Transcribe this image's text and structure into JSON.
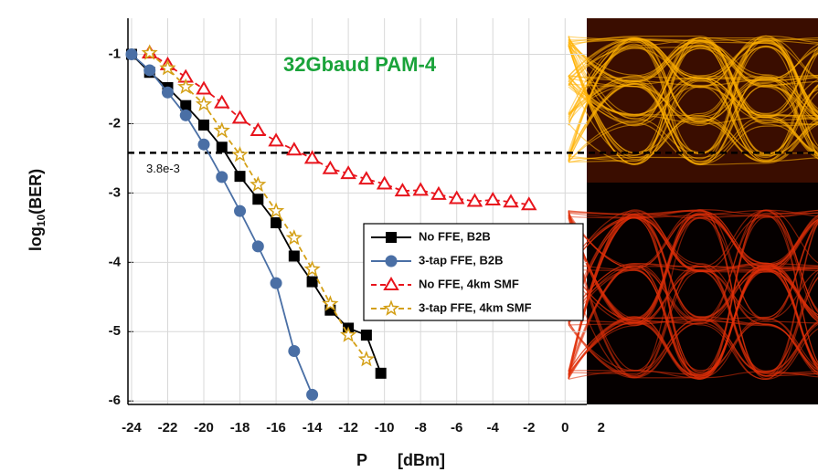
{
  "chart_data": {
    "type": "line",
    "title": "32Gbaud PAM-4",
    "xlabel": [
      "P",
      "[dBm]"
    ],
    "ylabel": [
      "log",
      "10",
      "(BER)"
    ],
    "xlim": [
      -24.2,
      1.2
    ],
    "ylim": [
      -6.05,
      -0.48
    ],
    "xticks": [
      -24,
      -22,
      -20,
      -18,
      -16,
      -14,
      -12,
      -10,
      -8,
      -6,
      -4,
      -2,
      0,
      2
    ],
    "yticks": [
      -6,
      -5,
      -4,
      -3,
      -2,
      -1
    ],
    "grid": true,
    "threshold": {
      "value": -2.42,
      "label": "3.8e-3"
    },
    "series": [
      {
        "name": "No FFE, B2B",
        "color": "#000000",
        "marker": "square",
        "dash": false,
        "x": [
          -24,
          -23,
          -22,
          -21,
          -20,
          -19,
          -18,
          -17,
          -16,
          -15,
          -14,
          -13,
          -12,
          -11,
          -10.2
        ],
        "values": [
          -1.0,
          -1.26,
          -1.48,
          -1.74,
          -2.02,
          -2.34,
          -2.76,
          -3.09,
          -3.43,
          -3.91,
          -4.28,
          -4.69,
          -4.95,
          -5.05,
          -5.6
        ]
      },
      {
        "name": "3-tap FFE, B2B",
        "color": "#4a6fa5",
        "marker": "circle",
        "dash": false,
        "x": [
          -24,
          -23,
          -22,
          -21,
          -20,
          -19,
          -18,
          -17,
          -16,
          -15,
          -14
        ],
        "values": [
          -1.0,
          -1.23,
          -1.55,
          -1.88,
          -2.3,
          -2.77,
          -3.26,
          -3.77,
          -4.3,
          -5.28,
          -5.91
        ]
      },
      {
        "name": "No FFE, 4km SMF",
        "color": "#e8141c",
        "marker": "triangle",
        "dash": true,
        "x": [
          -23,
          -22,
          -21,
          -20,
          -19,
          -18,
          -17,
          -16,
          -15,
          -14,
          -13,
          -12,
          -11,
          -10,
          -9,
          -8,
          -7,
          -6,
          -5,
          -4,
          -3,
          -2
        ],
        "values": [
          -0.98,
          -1.15,
          -1.33,
          -1.5,
          -1.7,
          -1.92,
          -2.1,
          -2.25,
          -2.38,
          -2.5,
          -2.65,
          -2.72,
          -2.8,
          -2.87,
          -2.97,
          -2.96,
          -3.02,
          -3.08,
          -3.12,
          -3.1,
          -3.13,
          -3.17
        ]
      },
      {
        "name": "3-tap FFE, 4km SMF",
        "color": "#d4a017",
        "marker": "star",
        "dash": true,
        "x": [
          -23,
          -22,
          -21,
          -20,
          -19,
          -18,
          -17,
          -16,
          -15,
          -14,
          -13,
          -12,
          -11
        ],
        "values": [
          -0.98,
          -1.2,
          -1.47,
          -1.72,
          -2.1,
          -2.45,
          -2.88,
          -3.26,
          -3.65,
          -4.1,
          -4.6,
          -5.05,
          -5.4
        ]
      }
    ]
  }
}
